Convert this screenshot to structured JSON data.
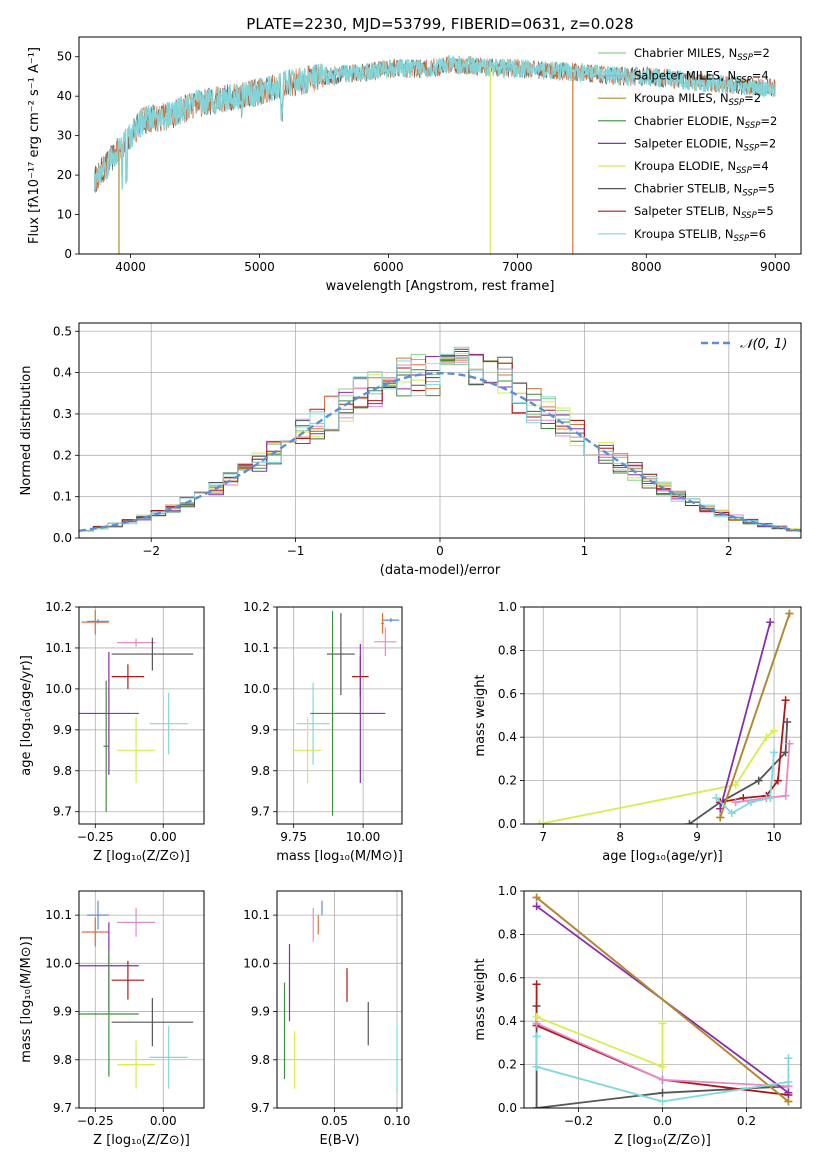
{
  "title": "PLATE=2230, MJD=53799, FIBERID=0631, z=0.028",
  "legend": [
    {
      "label": "Chabrier MILES, N",
      "sub": "SSP",
      "tail": "=2",
      "color": "#8dd08d"
    },
    {
      "label": "Salpeter MILES, N",
      "sub": "SSP",
      "tail": "=4",
      "color": "#e68bc8"
    },
    {
      "label": "Kroupa MILES, N",
      "sub": "SSP",
      "tail": "=2",
      "color": "#b08a2e"
    },
    {
      "label": "Chabrier ELODIE, N",
      "sub": "SSP",
      "tail": "=2",
      "color": "#3d8f3d"
    },
    {
      "label": "Salpeter ELODIE, N",
      "sub": "SSP",
      "tail": "=2",
      "color": "#8a2bb0"
    },
    {
      "label": "Kroupa ELODIE, N",
      "sub": "SSP",
      "tail": "=4",
      "color": "#d7ec4e"
    },
    {
      "label": "Chabrier STELIB, N",
      "sub": "SSP",
      "tail": "=5",
      "color": "#555555"
    },
    {
      "label": "Salpeter STELIB, N",
      "sub": "SSP",
      "tail": "=5",
      "color": "#b01818"
    },
    {
      "label": "Kroupa STELIB, N",
      "sub": "SSP",
      "tail": "=6",
      "color": "#7fd8dc"
    }
  ],
  "chart_data": [
    {
      "id": "spectrum",
      "type": "line",
      "xlabel": "wavelength [Angstrom, rest frame]",
      "ylabel": "Flux [fλ10⁻¹⁷ erg cm⁻² s⁻¹ A⁻¹]",
      "xlim": [
        3600,
        9200
      ],
      "ylim": [
        0,
        55
      ],
      "xticks": [
        4000,
        5000,
        6000,
        7000,
        8000,
        9000
      ],
      "yticks": [
        0,
        10,
        20,
        30,
        40,
        50
      ],
      "continuum": {
        "x": [
          3700,
          3800,
          3900,
          4000,
          4100,
          4300,
          4500,
          4800,
          5000,
          5200,
          5500,
          5800,
          6000,
          6300,
          6500,
          7000,
          7500,
          7800,
          8000,
          8300,
          8600,
          9000
        ],
        "y": [
          18,
          22,
          26,
          30,
          34,
          35,
          38,
          40,
          41,
          43,
          45,
          46,
          47,
          47,
          48,
          47,
          46,
          45,
          45,
          44,
          43,
          42
        ]
      },
      "dropouts": [
        {
          "x": 3910,
          "color": "#b08a2e"
        },
        {
          "x": 6790,
          "color": "#d7ec4e"
        },
        {
          "x": 7430,
          "color": "#e0703a"
        }
      ]
    },
    {
      "id": "residuals",
      "type": "histogram",
      "xlabel": "(data-model)/error",
      "ylabel": "Normed distribution",
      "xlim": [
        -2.5,
        2.5
      ],
      "ylim": [
        0,
        0.52
      ],
      "xticks": [
        -2,
        -1,
        0,
        1,
        2
      ],
      "xtick_labels": [
        "−2",
        "−1",
        "0",
        "1",
        "2"
      ],
      "yticks": [
        0.0,
        0.1,
        0.2,
        0.3,
        0.4,
        0.5
      ],
      "ytick_labels": [
        "0.0",
        "0.1",
        "0.2",
        "0.3",
        "0.4",
        "0.5"
      ],
      "bin_width": 0.1,
      "gaussian_label": "𝒩(0, 1)",
      "gaussian_color": "#5b8ed6"
    },
    {
      "id": "age-vs-Z",
      "type": "errorbar",
      "xlabel": "Z [log₁₀(Z/Z⊙)]",
      "ylabel": "age  [log₁₀(age/yr)]",
      "xlim": [
        -0.31,
        0.15
      ],
      "ylim": [
        9.67,
        10.2
      ],
      "xticks": [
        -0.25,
        0.0
      ],
      "xtick_labels": [
        "−0.25",
        "0.00"
      ],
      "yticks": [
        9.7,
        9.8,
        9.9,
        10.0,
        10.1,
        10.2
      ],
      "ytick_labels": [
        "9.7",
        "9.8",
        "9.9",
        "10.0",
        "10.1",
        "10.2"
      ],
      "points": [
        {
          "x": -0.24,
          "xerr": 0.04,
          "y": 10.165,
          "yerr": 0.005,
          "color": "#5b8ed6"
        },
        {
          "x": -0.25,
          "xerr": 0.05,
          "y": 10.163,
          "yerr": 0.03,
          "color": "#e0703a"
        },
        {
          "x": -0.1,
          "xerr": 0.07,
          "y": 10.113,
          "yerr": 0.01,
          "color": "#e68bc8"
        },
        {
          "x": -0.04,
          "xerr": 0.15,
          "y": 10.085,
          "yerr": 0.04,
          "color": "#555555"
        },
        {
          "x": -0.13,
          "xerr": 0.06,
          "y": 10.03,
          "yerr": 0.03,
          "color": "#b01818"
        },
        {
          "x": -0.2,
          "xerr": 0.11,
          "y": 9.94,
          "yerr": 0.15,
          "color": "#8a2bb0"
        },
        {
          "x": 0.02,
          "xerr": 0.07,
          "y": 9.915,
          "yerr": 0.075,
          "color": "#7fd8dc"
        },
        {
          "x": -0.21,
          "xerr": 0.01,
          "y": 9.86,
          "yerr": 0.16,
          "color": "#3d8f3d"
        },
        {
          "x": -0.1,
          "xerr": 0.07,
          "y": 9.85,
          "yerr": 0.08,
          "color": "#d7ec4e"
        }
      ]
    },
    {
      "id": "age-vs-mass",
      "type": "errorbar",
      "xlabel": "mass [log₁₀(M/M⊙)]",
      "ylabel": "",
      "xlim": [
        9.69,
        10.14
      ],
      "ylim": [
        9.67,
        10.2
      ],
      "xticks": [
        9.75,
        10.0
      ],
      "xtick_labels": [
        "9.75",
        "10.00"
      ],
      "yticks": [
        9.7,
        9.8,
        9.9,
        10.0,
        10.1,
        10.2
      ],
      "ytick_labels": [
        "9.7",
        "9.8",
        "9.9",
        "10.0",
        "10.1",
        "10.2"
      ],
      "points": [
        {
          "x": 10.1,
          "xerr": 0.03,
          "y": 10.168,
          "yerr": 0.005,
          "color": "#5b8ed6"
        },
        {
          "x": 10.07,
          "xerr": 0.005,
          "y": 10.16,
          "yerr": 0.025,
          "color": "#e0703a"
        },
        {
          "x": 10.08,
          "xerr": 0.04,
          "y": 10.115,
          "yerr": 0.035,
          "color": "#e68bc8"
        },
        {
          "x": 9.92,
          "xerr": 0.05,
          "y": 10.085,
          "yerr": 0.1,
          "color": "#555555"
        },
        {
          "x": 9.99,
          "xerr": 0.03,
          "y": 10.03,
          "yerr": 0.05,
          "color": "#b01818"
        },
        {
          "x": 9.99,
          "xerr": 0.09,
          "y": 9.94,
          "yerr": 0.17,
          "color": "#8a2bb0"
        },
        {
          "x": 9.82,
          "xerr": 0.06,
          "y": 9.915,
          "yerr": 0.1,
          "color": "#7fd8dc"
        },
        {
          "x": 9.89,
          "xerr": 0.08,
          "y": 9.94,
          "yerr": 0.25,
          "color": "#3d8f3d"
        },
        {
          "x": 9.8,
          "xerr": 0.05,
          "y": 9.85,
          "yerr": 0.08,
          "color": "#d7ec4e"
        }
      ]
    },
    {
      "id": "weight-vs-age",
      "type": "line",
      "xlabel": "age  [log₁₀(age/yr)]",
      "ylabel": "mass weight",
      "xlim": [
        6.75,
        10.35
      ],
      "ylim": [
        0.0,
        1.0
      ],
      "xticks": [
        7,
        8,
        9,
        10
      ],
      "xtick_labels": [
        "7",
        "8",
        "9",
        "10"
      ],
      "yticks": [
        0.0,
        0.2,
        0.4,
        0.6,
        0.8,
        1.0
      ],
      "ytick_labels": [
        "0.0",
        "0.2",
        "0.4",
        "0.6",
        "0.8",
        "1.0"
      ],
      "series": [
        {
          "color": "#d7ec4e",
          "x": [
            6.95,
            9.5,
            9.9,
            10.0
          ],
          "y": [
            0.0,
            0.18,
            0.4,
            0.43
          ]
        },
        {
          "color": "#555555",
          "x": [
            8.9,
            9.3,
            9.8,
            10.15,
            10.17
          ],
          "y": [
            0.0,
            0.1,
            0.2,
            0.33,
            0.47
          ]
        },
        {
          "color": "#b01818",
          "x": [
            9.3,
            9.6,
            9.9,
            10.05,
            10.15
          ],
          "y": [
            0.1,
            0.12,
            0.13,
            0.2,
            0.57
          ]
        },
        {
          "color": "#e68bc8",
          "x": [
            9.5,
            9.9,
            10.15,
            10.2
          ],
          "y": [
            0.1,
            0.12,
            0.13,
            0.37
          ]
        },
        {
          "color": "#8a2bb0",
          "x": [
            9.3,
            9.95
          ],
          "y": [
            0.07,
            0.93
          ]
        },
        {
          "color": "#e0703a",
          "x": [
            9.3,
            10.2
          ],
          "y": [
            0.03,
            0.97
          ]
        },
        {
          "color": "#b08a2e",
          "x": [
            9.3,
            10.2
          ],
          "y": [
            0.03,
            0.97
          ]
        },
        {
          "color": "#7fd8dc",
          "x": [
            9.25,
            9.45,
            9.7,
            9.95,
            10.0
          ],
          "y": [
            0.12,
            0.05,
            0.1,
            0.12,
            0.33
          ]
        }
      ]
    },
    {
      "id": "mass-vs-Z",
      "type": "errorbar",
      "xlabel": "Z [log₁₀(Z/Z⊙)]",
      "ylabel": "mass [log₁₀(M/M⊙)]",
      "xlim": [
        -0.31,
        0.15
      ],
      "ylim": [
        9.7,
        10.15
      ],
      "xticks": [
        -0.25,
        0.0
      ],
      "xtick_labels": [
        "−0.25",
        "0.00"
      ],
      "yticks": [
        9.7,
        9.8,
        9.9,
        10.0,
        10.1
      ],
      "ytick_labels": [
        "9.7",
        "9.8",
        "9.9",
        "10.0",
        "10.1"
      ],
      "points": [
        {
          "x": -0.24,
          "xerr": 0.04,
          "y": 10.1,
          "yerr": 0.03,
          "color": "#5b8ed6"
        },
        {
          "x": -0.25,
          "xerr": 0.05,
          "y": 10.065,
          "yerr": 0.03,
          "color": "#e0703a"
        },
        {
          "x": -0.1,
          "xerr": 0.07,
          "y": 10.085,
          "yerr": 0.03,
          "color": "#e68bc8"
        },
        {
          "x": -0.13,
          "xerr": 0.06,
          "y": 9.965,
          "yerr": 0.04,
          "color": "#b01818"
        },
        {
          "x": -0.2,
          "xerr": 0.11,
          "y": 9.995,
          "yerr": 0.09,
          "color": "#8a2bb0"
        },
        {
          "x": -0.2,
          "xerr": 0.11,
          "y": 9.895,
          "yerr": 0.13,
          "color": "#3d8f3d"
        },
        {
          "x": -0.04,
          "xerr": 0.15,
          "y": 9.878,
          "yerr": 0.05,
          "color": "#555555"
        },
        {
          "x": 0.02,
          "xerr": 0.07,
          "y": 9.805,
          "yerr": 0.065,
          "color": "#7fd8dc"
        },
        {
          "x": -0.1,
          "xerr": 0.07,
          "y": 9.79,
          "yerr": 0.05,
          "color": "#d7ec4e"
        }
      ]
    },
    {
      "id": "mass-vs-ebv",
      "type": "errorbar",
      "xlabel": "E(B-V)",
      "ylabel": "",
      "xlim": [
        0.004,
        0.104
      ],
      "ylim": [
        9.7,
        10.15
      ],
      "xticks": [
        0.05,
        0.1
      ],
      "xtick_labels": [
        "0.05",
        "0.10"
      ],
      "yticks": [
        9.7,
        9.8,
        9.9,
        10.0,
        10.1
      ],
      "ytick_labels": [
        "9.7",
        "9.8",
        "9.9",
        "10.0",
        "10.1"
      ],
      "points": [
        {
          "x": 0.04,
          "xerr": 0.0,
          "y": 10.115,
          "yerr": 0.015,
          "color": "#5b8ed6"
        },
        {
          "x": 0.037,
          "xerr": 0.0,
          "y": 10.08,
          "yerr": 0.02,
          "color": "#e0703a"
        },
        {
          "x": 0.033,
          "xerr": 0.0,
          "y": 10.08,
          "yerr": 0.035,
          "color": "#e68bc8"
        },
        {
          "x": 0.06,
          "xerr": 0.0,
          "y": 9.955,
          "yerr": 0.035,
          "color": "#b01818"
        },
        {
          "x": 0.014,
          "xerr": 0.0,
          "y": 9.96,
          "yerr": 0.08,
          "color": "#8a2bb0"
        },
        {
          "x": 0.077,
          "xerr": 0.0,
          "y": 9.875,
          "yerr": 0.045,
          "color": "#555555"
        },
        {
          "x": 0.01,
          "xerr": 0.0,
          "y": 9.86,
          "yerr": 0.1,
          "color": "#3d8f3d"
        },
        {
          "x": 0.018,
          "xerr": 0.0,
          "y": 9.8,
          "yerr": 0.06,
          "color": "#d7ec4e"
        },
        {
          "x": 0.1,
          "xerr": 0.0,
          "y": 9.8,
          "yerr": 0.07,
          "color": "#7fd8dc"
        }
      ]
    },
    {
      "id": "weight-vs-Z",
      "type": "line",
      "xlabel": "Z [log₁₀(Z/Z⊙)]",
      "ylabel": "mass weight",
      "xlim": [
        -0.33,
        0.33
      ],
      "ylim": [
        0.0,
        1.0
      ],
      "xticks": [
        -0.2,
        0.0,
        0.2
      ],
      "xtick_labels": [
        "−0.2",
        "0.0",
        "0.2"
      ],
      "yticks": [
        0.0,
        0.2,
        0.4,
        0.6,
        0.8,
        1.0
      ],
      "ytick_labels": [
        "0.0",
        "0.2",
        "0.4",
        "0.6",
        "0.8",
        "1.0"
      ],
      "series": [
        {
          "color": "#555555",
          "x": [
            -0.3,
            -0.3,
            0.0,
            0.3
          ],
          "y": [
            0.47,
            0.0,
            0.07,
            0.1
          ]
        },
        {
          "color": "#b01818",
          "x": [
            -0.3,
            -0.3,
            0.0,
            0.3
          ],
          "y": [
            0.57,
            0.38,
            0.13,
            0.06
          ]
        },
        {
          "color": "#e68bc8",
          "x": [
            -0.3,
            0.0,
            0.3
          ],
          "y": [
            0.39,
            0.13,
            0.1
          ]
        },
        {
          "color": "#d7ec4e",
          "x": [
            -0.3,
            0.0,
            0.0
          ],
          "y": [
            0.42,
            0.19,
            0.39
          ]
        },
        {
          "color": "#8a2bb0",
          "x": [
            -0.3,
            0.3
          ],
          "y": [
            0.93,
            0.07
          ]
        },
        {
          "color": "#e0703a",
          "x": [
            -0.3,
            0.3
          ],
          "y": [
            0.97,
            0.03
          ]
        },
        {
          "color": "#b08a2e",
          "x": [
            -0.3,
            0.3
          ],
          "y": [
            0.97,
            0.03
          ]
        },
        {
          "color": "#7fd8dc",
          "x": [
            -0.3,
            -0.3,
            0.0,
            0.3,
            0.3
          ],
          "y": [
            0.33,
            0.19,
            0.03,
            0.12,
            0.23
          ]
        }
      ]
    }
  ]
}
